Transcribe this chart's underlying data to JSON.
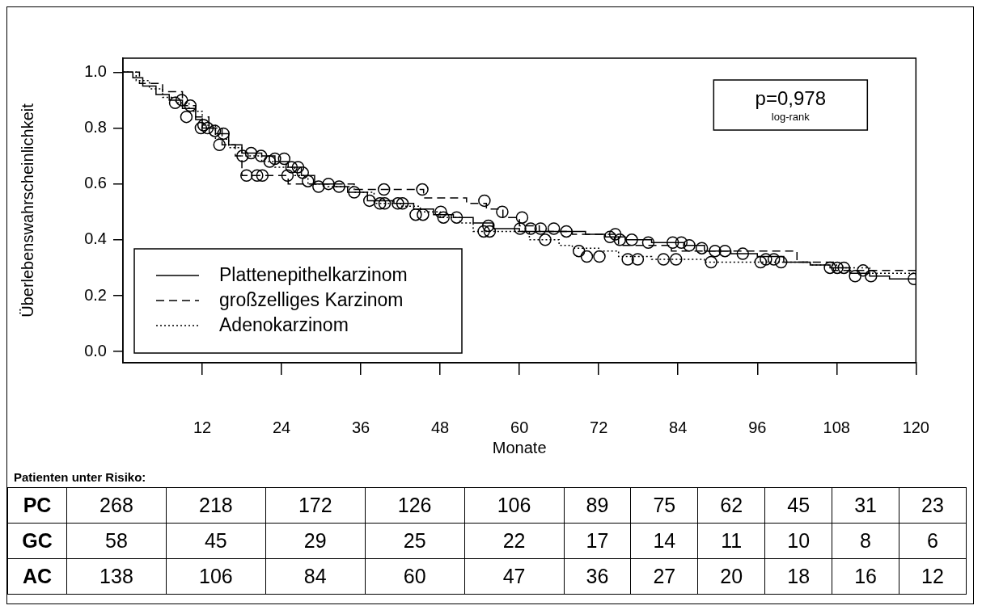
{
  "chart_data": [
    {
      "type": "step",
      "xlabel": "Monate",
      "ylabel": "Überlebenswahrscheinlichkeit",
      "xlim": [
        0,
        120
      ],
      "xticks": [
        12,
        24,
        36,
        48,
        60,
        72,
        84,
        96,
        108,
        120
      ],
      "ylim": [
        -0.04,
        1.05
      ],
      "yticks": [
        {
          "value": 0,
          "label": "0.0"
        },
        {
          "value": 0.2,
          "label": "0.2"
        },
        {
          "value": 0.4,
          "label": "0.4"
        },
        {
          "value": 0.6,
          "label": "0.6"
        },
        {
          "value": 0.8,
          "label": "0.8"
        },
        {
          "value": 1,
          "label": "1.0"
        }
      ],
      "grid": false,
      "legend": "bottom left",
      "annotations": [
        "p=0,978",
        "log-rank"
      ],
      "series": [
        {
          "name": "Plattenepithelkarzinom",
          "color": "#000000",
          "line_style": "solid",
          "x": [
            0,
            1.5,
            3,
            5,
            7,
            9,
            11,
            12,
            14,
            16,
            18,
            21,
            23,
            25,
            27,
            29,
            32,
            34,
            37,
            41,
            44,
            47,
            50,
            53,
            56,
            60,
            66,
            70,
            73,
            76,
            80,
            85,
            88,
            92,
            96,
            100,
            104,
            107,
            110,
            113,
            116,
            120
          ],
          "values": [
            1,
            0.98,
            0.95,
            0.92,
            0.9,
            0.87,
            0.83,
            0.8,
            0.78,
            0.74,
            0.71,
            0.7,
            0.68,
            0.66,
            0.63,
            0.6,
            0.59,
            0.57,
            0.54,
            0.53,
            0.51,
            0.49,
            0.48,
            0.46,
            0.44,
            0.43,
            0.43,
            0.42,
            0.41,
            0.4,
            0.39,
            0.38,
            0.36,
            0.35,
            0.34,
            0.32,
            0.31,
            0.3,
            0.28,
            0.27,
            0.26,
            0.26
          ]
        },
        {
          "name": "großzelliges Karzinom",
          "color": "#000000",
          "line_style": "dashed",
          "x": [
            0,
            2.5,
            6,
            9,
            11,
            13,
            15,
            17,
            18,
            25,
            35,
            45.5,
            52,
            55,
            57.5,
            60,
            63,
            68,
            75,
            83,
            102,
            107.5,
            120
          ],
          "values": [
            1,
            0.96,
            0.93,
            0.88,
            0.84,
            0.8,
            0.74,
            0.7,
            0.63,
            0.6,
            0.58,
            0.55,
            0.53,
            0.51,
            0.48,
            0.45,
            0.43,
            0.42,
            0.38,
            0.36,
            0.32,
            0.29,
            0.29
          ]
        },
        {
          "name": "Adenokarzinom",
          "color": "#000000",
          "line_style": "dotted",
          "x": [
            0,
            2,
            4,
            6,
            8,
            10,
            12,
            14,
            16,
            18,
            21,
            23,
            26,
            28,
            31,
            35,
            38,
            42,
            45,
            48,
            51,
            53,
            58,
            61.5,
            66,
            68,
            72,
            75,
            80,
            88,
            100,
            104,
            108,
            113,
            120
          ],
          "values": [
            1,
            0.97,
            0.94,
            0.91,
            0.89,
            0.86,
            0.81,
            0.76,
            0.73,
            0.7,
            0.68,
            0.66,
            0.63,
            0.6,
            0.59,
            0.57,
            0.53,
            0.52,
            0.5,
            0.48,
            0.46,
            0.43,
            0.43,
            0.4,
            0.38,
            0.37,
            0.36,
            0.34,
            0.33,
            0.32,
            0.32,
            0.31,
            0.3,
            0.28,
            0.27
          ]
        },
        {
          "type": "scatter",
          "color": "#000000",
          "marker": "circle",
          "x": [
            7.9,
            8.9,
            10.2,
            9.6,
            11.8,
            12.2,
            12.8,
            13.9,
            15.2,
            14.6,
            18.1,
            19.4,
            20.9,
            22.2,
            23,
            24.4,
            25.5,
            26.5,
            27.2,
            28,
            29.6,
            31.1,
            32.7,
            35,
            18.7,
            20.3,
            21.1,
            24.9,
            37.3,
            38.9,
            39.6,
            41.6,
            42.3,
            44.3,
            45.4,
            48.1,
            48.5,
            50.5,
            39.5,
            45.3,
            54.7,
            57.4,
            60.4,
            55.3,
            54.6,
            55.5,
            60.1,
            61.7,
            63.2,
            65.2,
            67.1,
            63.9,
            73.7,
            74.5,
            75.2,
            77,
            79.5,
            83.2,
            84.5,
            85.7,
            87.6,
            89.6,
            91.1,
            93.8,
            97.3,
            98.5,
            99.6,
            69,
            70.2,
            72.1,
            76.4,
            77.9,
            81.8,
            83.7,
            89,
            96.5,
            107,
            108.1,
            109.1,
            110.8,
            112,
            113.2,
            119.7
          ],
          "values": [
            0.89,
            0.9,
            0.88,
            0.84,
            0.8,
            0.81,
            0.8,
            0.79,
            0.78,
            0.74,
            0.7,
            0.71,
            0.7,
            0.68,
            0.69,
            0.69,
            0.66,
            0.66,
            0.64,
            0.61,
            0.59,
            0.6,
            0.59,
            0.57,
            0.63,
            0.63,
            0.63,
            0.63,
            0.54,
            0.53,
            0.53,
            0.53,
            0.53,
            0.49,
            0.49,
            0.5,
            0.48,
            0.48,
            0.58,
            0.58,
            0.54,
            0.5,
            0.48,
            0.45,
            0.43,
            0.43,
            0.44,
            0.44,
            0.44,
            0.44,
            0.43,
            0.4,
            0.41,
            0.42,
            0.4,
            0.4,
            0.39,
            0.39,
            0.39,
            0.38,
            0.37,
            0.36,
            0.36,
            0.35,
            0.33,
            0.33,
            0.32,
            0.36,
            0.34,
            0.34,
            0.33,
            0.33,
            0.33,
            0.33,
            0.32,
            0.32,
            0.3,
            0.3,
            0.3,
            0.27,
            0.29,
            0.27,
            0.26
          ]
        }
      ]
    },
    {
      "type": "other",
      "title": "Patienten unter Risiko:",
      "annotations": [
        "PC",
        "268",
        "218",
        "172",
        "126",
        "106",
        "89",
        "75",
        "62",
        "45",
        "31",
        "23",
        "GC",
        "58",
        "45",
        "29",
        "25",
        "22",
        "17",
        "14",
        "11",
        "10",
        "8",
        "6",
        "AC",
        "138",
        "106",
        "84",
        "60",
        "47",
        "36",
        "27",
        "20",
        "18",
        "16",
        "12"
      ]
    }
  ]
}
